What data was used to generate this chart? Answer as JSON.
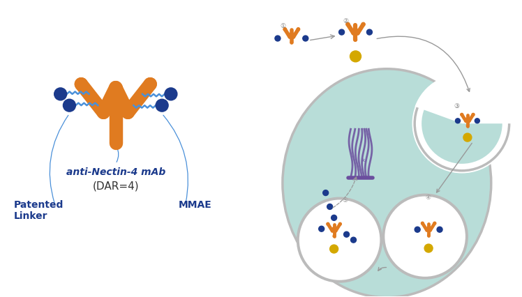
{
  "bg_color": "#ffffff",
  "ab_color": "#E07B20",
  "drug_color": "#1B3A8C",
  "linker_color": "#4A90D9",
  "cell_fill": "#B8DDD8",
  "cell_edge": "#BBBBBB",
  "lys_fill": "#ffffff",
  "lys_edge": "#BBBBBB",
  "rec_color": "#D4A800",
  "tub_color": "#6B4E9E",
  "text_color": "#1B3A8C",
  "text_dark": "#333333",
  "label_pl": "Patented\nLinker",
  "label_mmae": "MMAE",
  "label_anti": "anti-Nectin-4 mAb",
  "label_dar": "(DAR=4)",
  "figw": 7.48,
  "figh": 4.26
}
